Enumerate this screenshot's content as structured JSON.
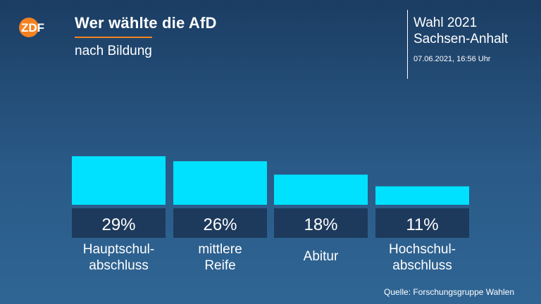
{
  "header": {
    "logo_text": "ZDF",
    "title": "Wer wählte die AfD",
    "subtitle": "nach Bildung"
  },
  "edition": {
    "line1": "Wahl 2021",
    "line2": "Sachsen-Anhalt",
    "timestamp": "07.06.2021, 16:56 Uhr"
  },
  "footer": {
    "source": "Quelle: Forschungsgruppe Wahlen"
  },
  "colors": {
    "bar": "#00e1ff",
    "value_box": "#1d3a5c",
    "accent": "#f58220"
  },
  "chart_data": {
    "type": "bar",
    "categories": [
      [
        "Hauptschul-",
        "abschluss"
      ],
      [
        "mittlere",
        "Reife"
      ],
      [
        "Abitur"
      ],
      [
        "Hochschul-",
        "abschluss"
      ]
    ],
    "values": [
      29,
      26,
      18,
      11
    ],
    "value_labels": [
      "29%",
      "26%",
      "18%",
      "11%"
    ],
    "unit": "%",
    "title": "Wer wählte die AfD",
    "subtitle": "nach Bildung",
    "xlabel": "",
    "ylabel": "",
    "grid": false,
    "legend": "none"
  }
}
